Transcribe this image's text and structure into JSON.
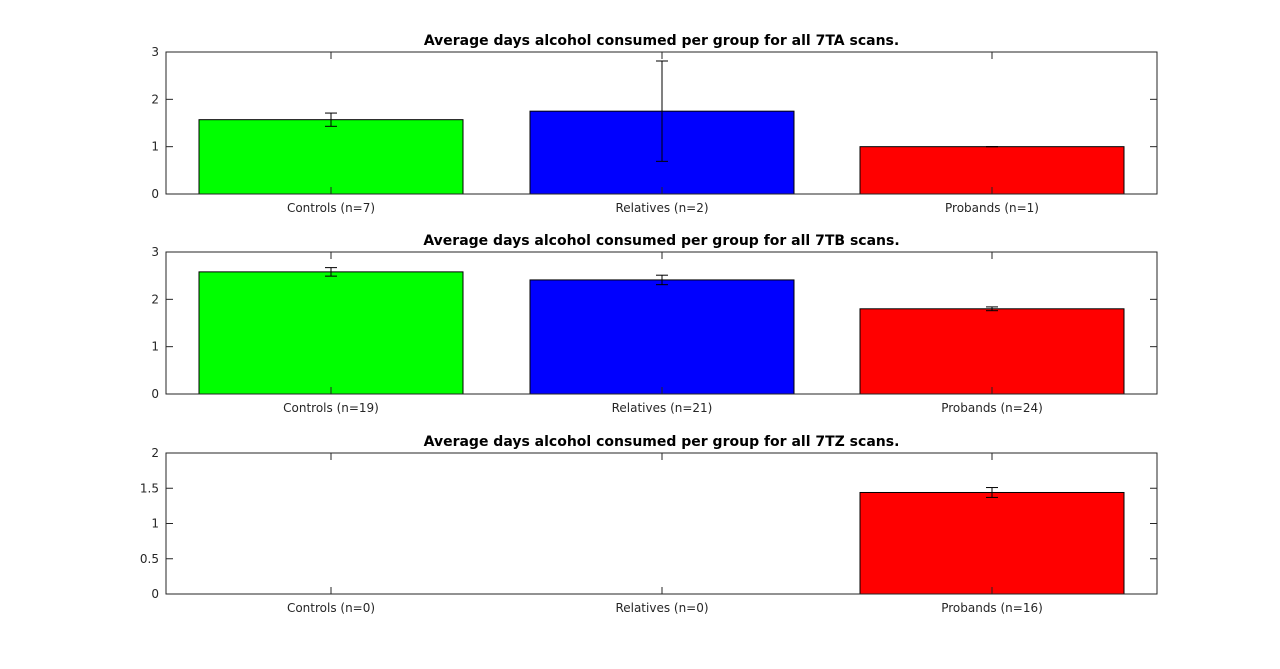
{
  "chart_data": [
    {
      "type": "bar",
      "title": "Average days alcohol consumed per group for all 7TA scans.",
      "categories": [
        "Controls (n=7)",
        "Relatives (n=2)",
        "Probands (n=1)"
      ],
      "values": [
        1.57,
        1.75,
        1.0
      ],
      "errors": [
        0.14,
        1.06,
        0.0
      ],
      "colors": [
        "#00ff00",
        "#0000ff",
        "#ff0000"
      ],
      "ylim": [
        0,
        3
      ],
      "yticks": [
        "0",
        "1",
        "2",
        "3"
      ],
      "grid": false
    },
    {
      "type": "bar",
      "title": "Average days alcohol consumed per group for all 7TB scans.",
      "categories": [
        "Controls (n=19)",
        "Relatives (n=21)",
        "Probands (n=24)"
      ],
      "values": [
        2.58,
        2.41,
        1.8
      ],
      "errors": [
        0.09,
        0.1,
        0.04
      ],
      "colors": [
        "#00ff00",
        "#0000ff",
        "#ff0000"
      ],
      "ylim": [
        0,
        3
      ],
      "yticks": [
        "0",
        "1",
        "2",
        "3"
      ],
      "grid": false
    },
    {
      "type": "bar",
      "title": "Average days alcohol consumed per group for all 7TZ scans.",
      "categories": [
        "Controls (n=0)",
        "Relatives (n=0)",
        "Probands (n=16)"
      ],
      "values": [
        null,
        null,
        1.44
      ],
      "errors": [
        null,
        null,
        0.07
      ],
      "colors": [
        "#00ff00",
        "#0000ff",
        "#ff0000"
      ],
      "ylim": [
        0,
        2
      ],
      "yticks": [
        "0",
        "0.5",
        "1",
        "1.5",
        "2"
      ],
      "grid": false
    }
  ]
}
